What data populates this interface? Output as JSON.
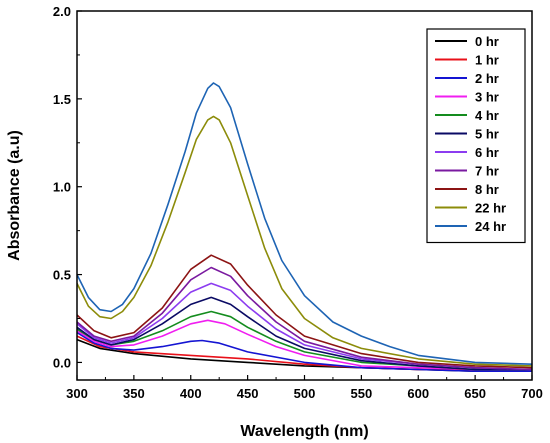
{
  "chart_data": {
    "type": "line",
    "title": "",
    "xlabel": "Wavelength (nm)",
    "ylabel": "Absorbance (a.u)",
    "xlim": [
      300,
      700
    ],
    "ylim": [
      -0.1,
      2.0
    ],
    "xticks": [
      300,
      350,
      400,
      450,
      500,
      550,
      600,
      650,
      700
    ],
    "xtick_labels": [
      "300",
      "350",
      "400",
      "450",
      "500",
      "550",
      "600",
      "650",
      "700"
    ],
    "yticks": [
      0.0,
      0.5,
      1.0,
      1.5,
      2.0
    ],
    "ytick_labels": [
      "0.0",
      "0.5",
      "1.0",
      "1.5",
      "2.0"
    ],
    "legend_position": "top-right",
    "grid": false,
    "series": [
      {
        "name": "0 hr",
        "color": "#000000",
        "points": [
          [
            300,
            0.13
          ],
          [
            320,
            0.08
          ],
          [
            350,
            0.05
          ],
          [
            400,
            0.02
          ],
          [
            450,
            0.0
          ],
          [
            500,
            -0.02
          ],
          [
            550,
            -0.03
          ],
          [
            600,
            -0.04
          ],
          [
            650,
            -0.05
          ],
          [
            700,
            -0.05
          ]
        ]
      },
      {
        "name": "1 hr",
        "color": "#e8101a",
        "points": [
          [
            300,
            0.15
          ],
          [
            320,
            0.09
          ],
          [
            350,
            0.06
          ],
          [
            400,
            0.04
          ],
          [
            450,
            0.02
          ],
          [
            500,
            -0.01
          ],
          [
            550,
            -0.03
          ],
          [
            600,
            -0.04
          ],
          [
            650,
            -0.04
          ],
          [
            700,
            -0.04
          ]
        ]
      },
      {
        "name": "2 hr",
        "color": "#1414d2",
        "points": [
          [
            300,
            0.17
          ],
          [
            315,
            0.11
          ],
          [
            330,
            0.08
          ],
          [
            350,
            0.07
          ],
          [
            375,
            0.09
          ],
          [
            400,
            0.12
          ],
          [
            410,
            0.125
          ],
          [
            425,
            0.11
          ],
          [
            450,
            0.06
          ],
          [
            500,
            0.0
          ],
          [
            550,
            -0.03
          ],
          [
            600,
            -0.04
          ],
          [
            650,
            -0.05
          ],
          [
            700,
            -0.05
          ]
        ]
      },
      {
        "name": "3 hr",
        "color": "#f01ef0",
        "points": [
          [
            300,
            0.18
          ],
          [
            315,
            0.12
          ],
          [
            330,
            0.09
          ],
          [
            350,
            0.1
          ],
          [
            375,
            0.15
          ],
          [
            400,
            0.22
          ],
          [
            415,
            0.24
          ],
          [
            430,
            0.22
          ],
          [
            450,
            0.16
          ],
          [
            475,
            0.09
          ],
          [
            500,
            0.04
          ],
          [
            550,
            -0.02
          ],
          [
            600,
            -0.03
          ],
          [
            650,
            -0.04
          ],
          [
            700,
            -0.04
          ]
        ]
      },
      {
        "name": "4 hr",
        "color": "#148c1e",
        "points": [
          [
            300,
            0.19
          ],
          [
            315,
            0.13
          ],
          [
            330,
            0.1
          ],
          [
            350,
            0.12
          ],
          [
            375,
            0.18
          ],
          [
            400,
            0.26
          ],
          [
            418,
            0.29
          ],
          [
            435,
            0.26
          ],
          [
            450,
            0.2
          ],
          [
            475,
            0.12
          ],
          [
            500,
            0.06
          ],
          [
            550,
            0.0
          ],
          [
            600,
            -0.02
          ],
          [
            650,
            -0.04
          ],
          [
            700,
            -0.04
          ]
        ]
      },
      {
        "name": "5 hr",
        "color": "#0a0a64",
        "points": [
          [
            300,
            0.2
          ],
          [
            315,
            0.13
          ],
          [
            330,
            0.1
          ],
          [
            350,
            0.13
          ],
          [
            375,
            0.22
          ],
          [
            400,
            0.33
          ],
          [
            418,
            0.37
          ],
          [
            435,
            0.33
          ],
          [
            450,
            0.26
          ],
          [
            475,
            0.15
          ],
          [
            500,
            0.08
          ],
          [
            550,
            0.01
          ],
          [
            600,
            -0.02
          ],
          [
            650,
            -0.04
          ],
          [
            700,
            -0.04
          ]
        ]
      },
      {
        "name": "6 hr",
        "color": "#8c3cf0",
        "points": [
          [
            300,
            0.22
          ],
          [
            315,
            0.14
          ],
          [
            330,
            0.11
          ],
          [
            350,
            0.14
          ],
          [
            375,
            0.25
          ],
          [
            400,
            0.4
          ],
          [
            418,
            0.45
          ],
          [
            435,
            0.41
          ],
          [
            450,
            0.32
          ],
          [
            475,
            0.19
          ],
          [
            500,
            0.1
          ],
          [
            550,
            0.02
          ],
          [
            600,
            -0.01
          ],
          [
            650,
            -0.03
          ],
          [
            700,
            -0.04
          ]
        ]
      },
      {
        "name": "7 hr",
        "color": "#7a1aa0",
        "points": [
          [
            300,
            0.23
          ],
          [
            315,
            0.15
          ],
          [
            330,
            0.12
          ],
          [
            350,
            0.15
          ],
          [
            375,
            0.28
          ],
          [
            400,
            0.47
          ],
          [
            418,
            0.54
          ],
          [
            435,
            0.49
          ],
          [
            450,
            0.38
          ],
          [
            475,
            0.23
          ],
          [
            500,
            0.12
          ],
          [
            550,
            0.03
          ],
          [
            600,
            -0.01
          ],
          [
            650,
            -0.03
          ],
          [
            700,
            -0.04
          ]
        ]
      },
      {
        "name": "8 hr",
        "color": "#8c1414",
        "points": [
          [
            300,
            0.27
          ],
          [
            315,
            0.18
          ],
          [
            330,
            0.14
          ],
          [
            350,
            0.17
          ],
          [
            375,
            0.31
          ],
          [
            400,
            0.53
          ],
          [
            418,
            0.61
          ],
          [
            435,
            0.56
          ],
          [
            450,
            0.44
          ],
          [
            475,
            0.27
          ],
          [
            500,
            0.15
          ],
          [
            550,
            0.05
          ],
          [
            600,
            0.0
          ],
          [
            650,
            -0.02
          ],
          [
            700,
            -0.03
          ]
        ]
      },
      {
        "name": "22 hr",
        "color": "#8c8c0a",
        "points": [
          [
            300,
            0.45
          ],
          [
            310,
            0.32
          ],
          [
            320,
            0.26
          ],
          [
            330,
            0.25
          ],
          [
            340,
            0.29
          ],
          [
            350,
            0.37
          ],
          [
            365,
            0.55
          ],
          [
            380,
            0.8
          ],
          [
            395,
            1.08
          ],
          [
            405,
            1.27
          ],
          [
            415,
            1.38
          ],
          [
            420,
            1.4
          ],
          [
            425,
            1.38
          ],
          [
            435,
            1.25
          ],
          [
            450,
            0.95
          ],
          [
            465,
            0.65
          ],
          [
            480,
            0.42
          ],
          [
            500,
            0.25
          ],
          [
            525,
            0.14
          ],
          [
            550,
            0.08
          ],
          [
            600,
            0.02
          ],
          [
            650,
            -0.01
          ],
          [
            700,
            -0.02
          ]
        ]
      },
      {
        "name": "24 hr",
        "color": "#1e64b4",
        "points": [
          [
            300,
            0.5
          ],
          [
            310,
            0.37
          ],
          [
            320,
            0.3
          ],
          [
            330,
            0.29
          ],
          [
            340,
            0.33
          ],
          [
            350,
            0.42
          ],
          [
            365,
            0.62
          ],
          [
            380,
            0.9
          ],
          [
            395,
            1.2
          ],
          [
            405,
            1.42
          ],
          [
            415,
            1.56
          ],
          [
            420,
            1.59
          ],
          [
            425,
            1.57
          ],
          [
            435,
            1.45
          ],
          [
            450,
            1.13
          ],
          [
            465,
            0.82
          ],
          [
            480,
            0.58
          ],
          [
            500,
            0.38
          ],
          [
            525,
            0.23
          ],
          [
            550,
            0.15
          ],
          [
            575,
            0.09
          ],
          [
            600,
            0.04
          ],
          [
            650,
            0.0
          ],
          [
            700,
            -0.01
          ]
        ]
      }
    ]
  }
}
